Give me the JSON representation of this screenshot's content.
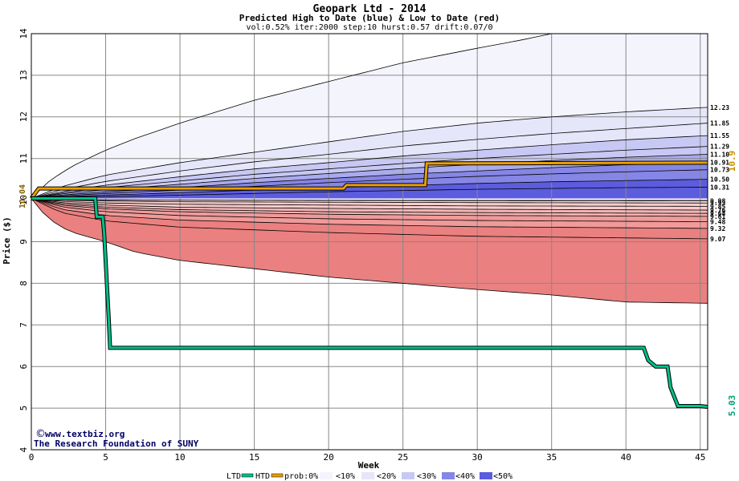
{
  "chart_data": {
    "type": "area",
    "title": "Geopark Ltd - 2014",
    "subtitle": "Predicted High to Date (blue) &  Low to Date (red)",
    "params": "vol:0.52% iter:2000 step:10 hurst:0.57 drift:0.07/0",
    "xlabel": "Week",
    "ylabel": "Price ($)",
    "xlim": [
      0,
      45.5
    ],
    "ylim": [
      4,
      14
    ],
    "xticks": [
      0,
      5,
      10,
      15,
      20,
      25,
      30,
      35,
      40,
      45
    ],
    "yticks": [
      4,
      5,
      6,
      7,
      8,
      9,
      10,
      11,
      12,
      13,
      14
    ],
    "grid": true,
    "start_price": "10.04",
    "htd_last": "10.9",
    "ltd_last": "5.03",
    "colors": {
      "htd": "#e8a000",
      "ltd": "#00c08a",
      "prob0": "#f4f4fd",
      "prob10": "#e6e6fa",
      "prob20": "#c8c8f4",
      "prob30": "#aaaaee",
      "prob40": "#8686e6",
      "prob50": "#5c5cde",
      "rprob0": "#fdf0f0",
      "rprob10": "#fbe0e0",
      "rprob20": "#f8cccc",
      "rprob30": "#f4b4b4",
      "rprob40": "#f09a9a",
      "rprob50": "#ea8080"
    },
    "high_bands": [
      {
        "label": "",
        "points": [
          [
            0,
            10.04
          ],
          [
            1,
            10.4
          ],
          [
            2,
            10.65
          ],
          [
            3,
            10.86
          ],
          [
            5,
            11.2
          ],
          [
            7,
            11.48
          ],
          [
            10,
            11.85
          ],
          [
            15,
            12.4
          ],
          [
            20,
            12.85
          ],
          [
            25,
            13.3
          ],
          [
            30,
            13.65
          ],
          [
            33,
            13.85
          ],
          [
            35,
            14
          ]
        ]
      },
      {
        "label": "12.23",
        "points": [
          [
            0,
            10.04
          ],
          [
            2,
            10.32
          ],
          [
            5,
            10.6
          ],
          [
            10,
            10.9
          ],
          [
            15,
            11.15
          ],
          [
            20,
            11.4
          ],
          [
            25,
            11.65
          ],
          [
            30,
            11.85
          ],
          [
            35,
            12.0
          ],
          [
            40,
            12.12
          ],
          [
            45.5,
            12.23
          ]
        ]
      },
      {
        "label": "11.85",
        "points": [
          [
            0,
            10.04
          ],
          [
            2,
            10.25
          ],
          [
            5,
            10.45
          ],
          [
            10,
            10.7
          ],
          [
            15,
            10.92
          ],
          [
            20,
            11.1
          ],
          [
            25,
            11.3
          ],
          [
            30,
            11.46
          ],
          [
            35,
            11.6
          ],
          [
            40,
            11.72
          ],
          [
            45.5,
            11.85
          ]
        ]
      },
      {
        "label": "11.55",
        "points": [
          [
            0,
            10.04
          ],
          [
            2,
            10.2
          ],
          [
            5,
            10.36
          ],
          [
            10,
            10.56
          ],
          [
            15,
            10.75
          ],
          [
            20,
            10.9
          ],
          [
            25,
            11.06
          ],
          [
            30,
            11.2
          ],
          [
            35,
            11.33
          ],
          [
            40,
            11.45
          ],
          [
            45.5,
            11.55
          ]
        ]
      },
      {
        "label": "11.29",
        "points": [
          [
            0,
            10.04
          ],
          [
            2,
            10.17
          ],
          [
            5,
            10.3
          ],
          [
            10,
            10.46
          ],
          [
            15,
            10.62
          ],
          [
            20,
            10.75
          ],
          [
            25,
            10.88
          ],
          [
            30,
            11.0
          ],
          [
            35,
            11.1
          ],
          [
            40,
            11.2
          ],
          [
            45.5,
            11.29
          ]
        ]
      },
      {
        "label": "11.10",
        "points": [
          [
            0,
            10.04
          ],
          [
            2,
            10.15
          ],
          [
            5,
            10.25
          ],
          [
            10,
            10.38
          ],
          [
            15,
            10.52
          ],
          [
            20,
            10.64
          ],
          [
            25,
            10.76
          ],
          [
            30,
            10.86
          ],
          [
            35,
            10.95
          ],
          [
            40,
            11.03
          ],
          [
            45.5,
            11.1
          ]
        ]
      },
      {
        "label": "10.91",
        "points": [
          [
            0,
            10.04
          ],
          [
            2,
            10.12
          ],
          [
            5,
            10.2
          ],
          [
            10,
            10.3
          ],
          [
            15,
            10.42
          ],
          [
            20,
            10.52
          ],
          [
            25,
            10.62
          ],
          [
            30,
            10.7
          ],
          [
            35,
            10.78
          ],
          [
            40,
            10.85
          ],
          [
            45.5,
            10.91
          ]
        ]
      },
      {
        "label": "10.73",
        "points": [
          [
            0,
            10.04
          ],
          [
            2,
            10.1
          ],
          [
            5,
            10.16
          ],
          [
            10,
            10.24
          ],
          [
            15,
            10.33
          ],
          [
            20,
            10.42
          ],
          [
            25,
            10.5
          ],
          [
            30,
            10.57
          ],
          [
            35,
            10.63
          ],
          [
            40,
            10.68
          ],
          [
            45.5,
            10.73
          ]
        ]
      },
      {
        "label": "10.50",
        "points": [
          [
            0,
            10.04
          ],
          [
            2,
            10.08
          ],
          [
            5,
            10.12
          ],
          [
            10,
            10.18
          ],
          [
            15,
            10.24
          ],
          [
            20,
            10.3
          ],
          [
            25,
            10.35
          ],
          [
            30,
            10.4
          ],
          [
            35,
            10.44
          ],
          [
            40,
            10.47
          ],
          [
            45.5,
            10.5
          ]
        ]
      },
      {
        "label": "10.31",
        "points": [
          [
            0,
            10.04
          ],
          [
            2,
            10.06
          ],
          [
            5,
            10.08
          ],
          [
            10,
            10.12
          ],
          [
            15,
            10.16
          ],
          [
            20,
            10.2
          ],
          [
            25,
            10.23
          ],
          [
            30,
            10.26
          ],
          [
            35,
            10.28
          ],
          [
            40,
            10.3
          ],
          [
            45.5,
            10.31
          ]
        ]
      }
    ],
    "low_bands": [
      {
        "label": "9.98",
        "points": [
          [
            0,
            10.04
          ],
          [
            2,
            10.02
          ],
          [
            5,
            10.01
          ],
          [
            10,
            10.0
          ],
          [
            20,
            9.99
          ],
          [
            30,
            9.985
          ],
          [
            45.5,
            9.98
          ]
        ]
      },
      {
        "label": "9.93",
        "points": [
          [
            0,
            10.04
          ],
          [
            2,
            10.0
          ],
          [
            5,
            9.98
          ],
          [
            10,
            9.96
          ],
          [
            20,
            9.95
          ],
          [
            30,
            9.94
          ],
          [
            45.5,
            9.93
          ]
        ]
      },
      {
        "label": "9.85",
        "points": [
          [
            0,
            10.04
          ],
          [
            2,
            9.97
          ],
          [
            5,
            9.93
          ],
          [
            10,
            9.9
          ],
          [
            20,
            9.88
          ],
          [
            30,
            9.86
          ],
          [
            45.5,
            9.85
          ]
        ]
      },
      {
        "label": "9.76",
        "points": [
          [
            0,
            10.04
          ],
          [
            2,
            9.94
          ],
          [
            5,
            9.88
          ],
          [
            10,
            9.83
          ],
          [
            20,
            9.8
          ],
          [
            30,
            9.78
          ],
          [
            45.5,
            9.76
          ]
        ]
      },
      {
        "label": "9.68",
        "points": [
          [
            0,
            10.04
          ],
          [
            2,
            9.91
          ],
          [
            5,
            9.83
          ],
          [
            10,
            9.77
          ],
          [
            20,
            9.72
          ],
          [
            30,
            9.7
          ],
          [
            45.5,
            9.68
          ]
        ]
      },
      {
        "label": "9.61",
        "points": [
          [
            0,
            10.04
          ],
          [
            2,
            9.88
          ],
          [
            5,
            9.79
          ],
          [
            10,
            9.72
          ],
          [
            20,
            9.66
          ],
          [
            30,
            9.63
          ],
          [
            45.5,
            9.61
          ]
        ]
      },
      {
        "label": "9.48",
        "points": [
          [
            0,
            10.04
          ],
          [
            2,
            9.84
          ],
          [
            5,
            9.72
          ],
          [
            10,
            9.63
          ],
          [
            20,
            9.55
          ],
          [
            30,
            9.51
          ],
          [
            45.5,
            9.48
          ]
        ]
      },
      {
        "label": "9.32",
        "points": [
          [
            0,
            10.04
          ],
          [
            2,
            9.78
          ],
          [
            5,
            9.63
          ],
          [
            10,
            9.52
          ],
          [
            20,
            9.42
          ],
          [
            30,
            9.36
          ],
          [
            45.5,
            9.32
          ]
        ]
      },
      {
        "label": "9.07",
        "points": [
          [
            0,
            10.04
          ],
          [
            2,
            9.7
          ],
          [
            5,
            9.5
          ],
          [
            10,
            9.35
          ],
          [
            20,
            9.22
          ],
          [
            30,
            9.13
          ],
          [
            45.5,
            9.07
          ]
        ]
      },
      {
        "label": "",
        "points": [
          [
            0,
            10.04
          ],
          [
            1,
            9.6
          ],
          [
            2,
            9.35
          ],
          [
            3,
            9.2
          ],
          [
            5,
            9.0
          ],
          [
            7,
            8.75
          ],
          [
            10,
            8.55
          ],
          [
            15,
            8.35
          ],
          [
            20,
            8.15
          ],
          [
            25,
            8.0
          ],
          [
            30,
            7.85
          ],
          [
            35,
            7.72
          ],
          [
            40,
            7.55
          ],
          [
            45.5,
            7.52
          ]
        ]
      }
    ],
    "htd_series": [
      [
        0,
        10.04
      ],
      [
        0.5,
        10.28
      ],
      [
        21,
        10.28
      ],
      [
        21.2,
        10.36
      ],
      [
        26.5,
        10.36
      ],
      [
        26.6,
        10.88
      ],
      [
        45.5,
        10.9
      ]
    ],
    "ltd_series": [
      [
        0,
        10.04
      ],
      [
        4.3,
        10.04
      ],
      [
        4.4,
        9.6
      ],
      [
        4.8,
        9.6
      ],
      [
        4.9,
        9.2
      ],
      [
        5.2,
        7.2
      ],
      [
        5.3,
        6.45
      ],
      [
        41.2,
        6.45
      ],
      [
        41.5,
        6.15
      ],
      [
        42,
        6.0
      ],
      [
        42.8,
        6.0
      ],
      [
        43,
        5.5
      ],
      [
        43.5,
        5.05
      ],
      [
        45,
        5.05
      ],
      [
        45.5,
        5.03
      ]
    ],
    "legend": {
      "ltd": "LTD",
      "htd": "HTD",
      "items": [
        "prob:0%",
        "<10%",
        "<20%",
        "<30%",
        "<40%",
        "<50%"
      ]
    },
    "credits": {
      "site": "www.textbiz.org",
      "org": "The Research Foundation of SUNY"
    }
  }
}
